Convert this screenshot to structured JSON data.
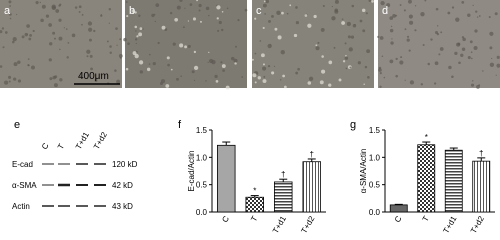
{
  "image_panels": [
    "a",
    "b",
    "c",
    "d"
  ],
  "scale_bar": "400μm",
  "blot": {
    "panel_label": "e",
    "lanes": [
      "C",
      "T",
      "T+d1",
      "T+d2"
    ],
    "rows": [
      {
        "name": "E-cad",
        "size": "120 kD"
      },
      {
        "name": "α-SMA",
        "size": "42 kD"
      },
      {
        "name": "Actin",
        "size": "43 kD"
      }
    ]
  },
  "chart_data": [
    {
      "type": "bar",
      "panel_label": "f",
      "y_label": "E-cad/Actin",
      "categories": [
        "C",
        "T",
        "T+d1",
        "T+d2"
      ],
      "values": [
        1.22,
        0.27,
        0.55,
        0.92
      ],
      "errors": [
        0.06,
        0.03,
        0.05,
        0.05
      ],
      "annotations": [
        null,
        "*",
        "†",
        "†"
      ],
      "colors": [
        "#a6a6a6",
        "#e0e0e0",
        "#555555",
        "#d0d0d0"
      ],
      "ylim": [
        0,
        1.5
      ],
      "yticks": [
        {
          "value": 0,
          "label": "0.0"
        },
        {
          "value": 0.5,
          "label": "0.5"
        },
        {
          "value": 1,
          "label": "1.0"
        },
        {
          "value": 1.5,
          "label": "1.5"
        }
      ]
    },
    {
      "type": "bar",
      "panel_label": "g",
      "y_label": "α-SMA/Actin",
      "categories": [
        "C",
        "T",
        "T+d1",
        "T+d2"
      ],
      "values": [
        0.13,
        1.23,
        1.13,
        0.93
      ],
      "errors": [
        0.01,
        0.05,
        0.04,
        0.06
      ],
      "annotations": [
        null,
        "*",
        null,
        "†"
      ],
      "colors": [
        "#666666",
        "#e0e0e0",
        "#555555",
        "#d0d0d0"
      ],
      "ylim": [
        0,
        1.5
      ],
      "yticks": [
        {
          "value": 0,
          "label": "0.0"
        },
        {
          "value": 0.5,
          "label": "0.5"
        },
        {
          "value": 1,
          "label": "1.0"
        },
        {
          "value": 1.5,
          "label": "1.5"
        }
      ]
    }
  ]
}
